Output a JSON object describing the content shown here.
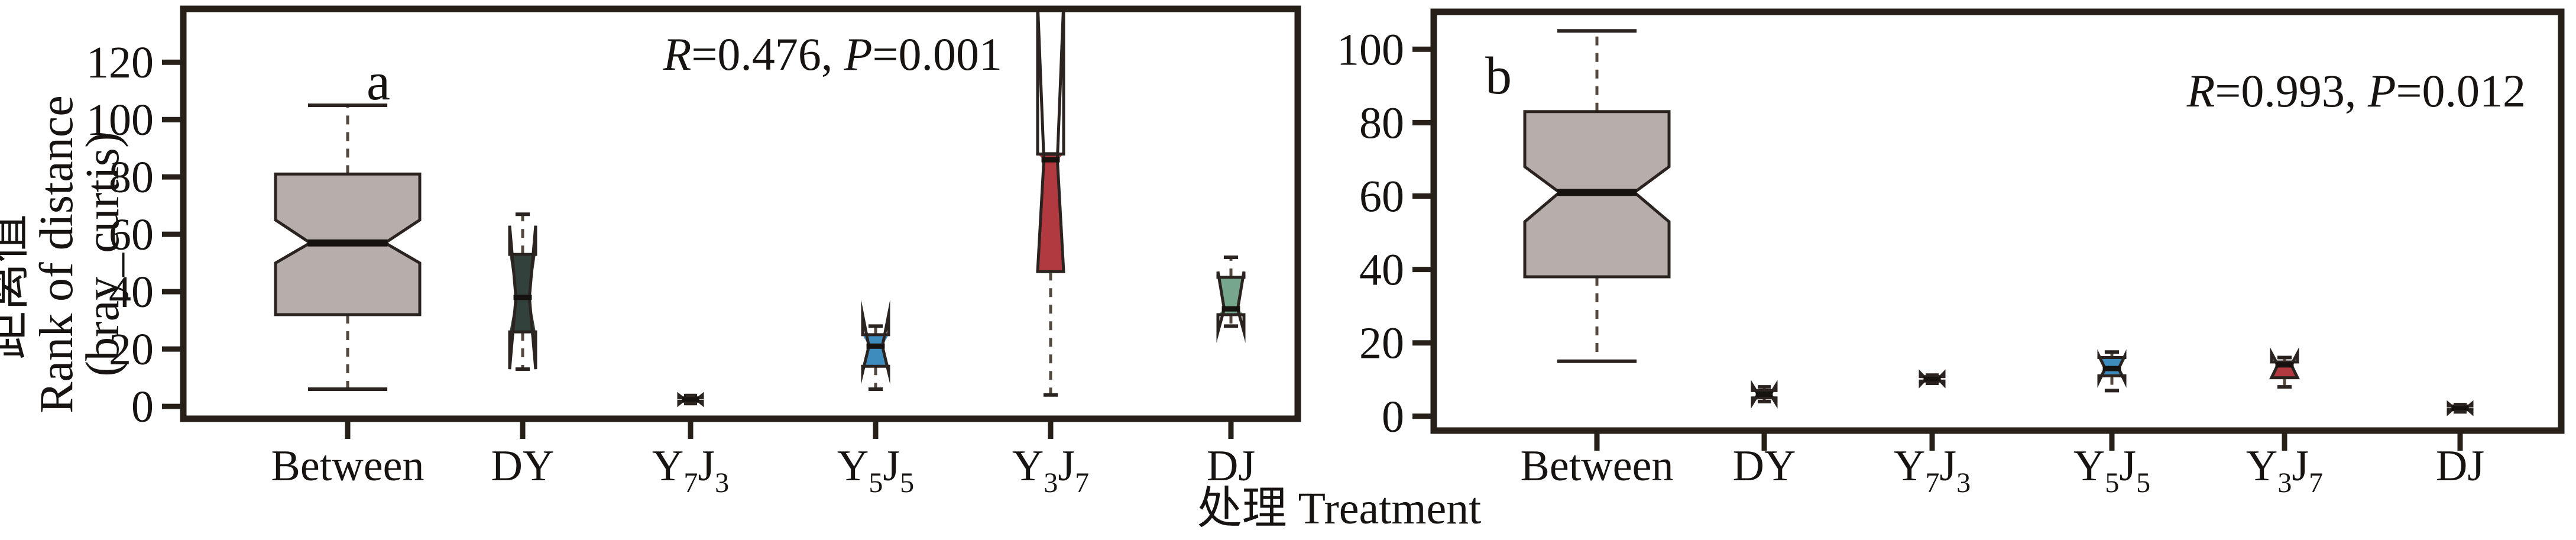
{
  "figure": {
    "xlabel": "处理 Treatment",
    "ylabel_lines": [
      "距离值",
      "Rank of distance",
      "(bray_curtis)"
    ],
    "background_color": "#ffffff",
    "frame_color": "#262019",
    "edge_color": "#2a231f",
    "whisker_color": "#55493f",
    "median_color": "#15120f",
    "text_color": "#171310"
  },
  "chart_data": [
    {
      "type": "box",
      "panel_label": "a",
      "annotation_text": "R=0.476, P=0.001",
      "annotation_parts": [
        {
          "t": "R",
          "italic": true
        },
        {
          "t": "=0.476, "
        },
        {
          "t": "P",
          "italic": true
        },
        {
          "t": "=0.001"
        }
      ],
      "ylabel": "距离值 Rank of distance (bray_curtis)",
      "yticks": [
        0,
        20,
        40,
        60,
        80,
        100,
        120
      ],
      "ylim": [
        -4.3,
        138.6
      ],
      "grid": false,
      "legend": false,
      "categories": [
        "Between",
        "DY",
        "Y₇J₃",
        "Y₅J₅",
        "Y₃J₇",
        "DJ"
      ],
      "category_parts": [
        [
          {
            "t": "Between"
          }
        ],
        [
          {
            "t": "DY"
          }
        ],
        [
          {
            "t": "Y"
          },
          {
            "t": "7",
            "sub": true
          },
          {
            "t": "J"
          },
          {
            "t": "3",
            "sub": true
          }
        ],
        [
          {
            "t": "Y"
          },
          {
            "t": "5",
            "sub": true
          },
          {
            "t": "J"
          },
          {
            "t": "5",
            "sub": true
          }
        ],
        [
          {
            "t": "Y"
          },
          {
            "t": "3",
            "sub": true
          },
          {
            "t": "J"
          },
          {
            "t": "7",
            "sub": true
          }
        ],
        [
          {
            "t": "DJ"
          }
        ]
      ],
      "boxes": [
        {
          "name": "Between",
          "color": "#b6aeab",
          "halfwidth": 122,
          "whisker_low": 6,
          "q1": 32,
          "notch_low": 50,
          "median": 57,
          "notch_high": 65,
          "q3": 81,
          "whisker_high": 105
        },
        {
          "name": "DY",
          "color": "#33413c",
          "halfwidth": 22,
          "whisker_low": 13,
          "q1": 26,
          "notch_low": 13,
          "median": 38,
          "notch_high": 63,
          "q3": 53,
          "whisker_high": 67
        },
        {
          "name": "Y7J3",
          "color": "#1d1d1b",
          "halfwidth": 20,
          "whisker_low": 1,
          "q1": 1.8,
          "notch_low": 0.8,
          "median": 2.4,
          "notch_high": 4,
          "q3": 3,
          "whisker_high": 3.8
        },
        {
          "name": "Y5J5",
          "color": "#3e8cbe",
          "halfwidth": 22,
          "whisker_low": 6,
          "q1": 14,
          "notch_low": 12,
          "median": 21,
          "notch_high": 32,
          "q3": 25,
          "whisker_high": 28
        },
        {
          "name": "Y3J7",
          "color": "#b13a40",
          "halfwidth": 22,
          "whisker_low": 4,
          "q1": 47,
          "notch_low": 47,
          "median": 86,
          "notch_high": 141,
          "q3": 88,
          "whisker_high": 88
        },
        {
          "name": "DJ",
          "color": "#76a78c",
          "halfwidth": 22,
          "whisker_low": 28,
          "q1": 32,
          "notch_low": 26,
          "median": 34,
          "notch_high": 47,
          "q3": 45,
          "whisker_high": 52
        }
      ]
    },
    {
      "type": "box",
      "panel_label": "b",
      "annotation_text": "R=0.993, P=0.012",
      "annotation_parts": [
        {
          "t": "R",
          "italic": true
        },
        {
          "t": "=0.993, "
        },
        {
          "t": "P",
          "italic": true
        },
        {
          "t": "=0.012"
        }
      ],
      "yticks": [
        0,
        20,
        40,
        60,
        80,
        100
      ],
      "ylim": [
        -3.9,
        110.2
      ],
      "grid": false,
      "legend": false,
      "categories": [
        "Between",
        "DY",
        "Y₇J₃",
        "Y₅J₅",
        "Y₃J₇",
        "DJ"
      ],
      "category_parts": [
        [
          {
            "t": "Between"
          }
        ],
        [
          {
            "t": "DY"
          }
        ],
        [
          {
            "t": "Y"
          },
          {
            "t": "7",
            "sub": true
          },
          {
            "t": "J"
          },
          {
            "t": "3",
            "sub": true
          }
        ],
        [
          {
            "t": "Y"
          },
          {
            "t": "5",
            "sub": true
          },
          {
            "t": "J"
          },
          {
            "t": "5",
            "sub": true
          }
        ],
        [
          {
            "t": "Y"
          },
          {
            "t": "3",
            "sub": true
          },
          {
            "t": "J"
          },
          {
            "t": "7",
            "sub": true
          }
        ],
        [
          {
            "t": "DJ"
          }
        ]
      ],
      "boxes": [
        {
          "name": "Between",
          "color": "#b6aeab",
          "halfwidth": 122,
          "whisker_low": 15,
          "q1": 38,
          "notch_low": 53,
          "median": 61,
          "notch_high": 68,
          "q3": 83,
          "whisker_high": 105
        },
        {
          "name": "DY",
          "color": "#1d1d1b",
          "halfwidth": 20,
          "whisker_low": 4,
          "q1": 5,
          "notch_low": 3.5,
          "median": 6,
          "notch_high": 8.5,
          "q3": 7,
          "whisker_high": 8
        },
        {
          "name": "Y7J3",
          "color": "#1d1d1b",
          "halfwidth": 20,
          "whisker_low": 9,
          "q1": 9.6,
          "notch_low": 8.6,
          "median": 10.2,
          "notch_high": 11.8,
          "q3": 10.8,
          "whisker_high": 11.2
        },
        {
          "name": "Y5J5",
          "color": "#3e8cbe",
          "halfwidth": 22,
          "whisker_low": 7,
          "q1": 11,
          "notch_low": 9.5,
          "median": 13,
          "notch_high": 16.5,
          "q3": 16,
          "whisker_high": 17.5
        },
        {
          "name": "Y3J7",
          "color": "#b13a40",
          "halfwidth": 22,
          "whisker_low": 8,
          "q1": 10.5,
          "notch_low": 10.5,
          "median": 14,
          "notch_high": 17.2,
          "q3": 14.8,
          "whisker_high": 16
        },
        {
          "name": "DJ",
          "color": "#1d1d1b",
          "halfwidth": 20,
          "whisker_low": 1.2,
          "q1": 1.8,
          "notch_low": 0.9,
          "median": 2.2,
          "notch_high": 3.5,
          "q3": 2.8,
          "whisker_high": 3.2
        }
      ]
    }
  ]
}
